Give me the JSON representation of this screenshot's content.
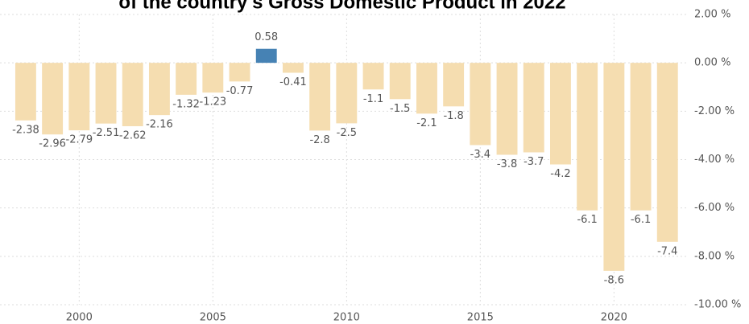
{
  "chart_data": {
    "type": "bar",
    "title": "of the country's Gross Domestic Product in 2022",
    "x": [
      1998,
      1999,
      2000,
      2001,
      2002,
      2003,
      2004,
      2005,
      2006,
      2007,
      2008,
      2009,
      2010,
      2011,
      2012,
      2013,
      2014,
      2015,
      2016,
      2017,
      2018,
      2019,
      2020,
      2021,
      2022
    ],
    "values": [
      -2.38,
      -2.96,
      -2.79,
      -2.51,
      -2.62,
      -2.16,
      -1.32,
      -1.23,
      -0.77,
      0.58,
      -0.41,
      -2.8,
      -2.5,
      -1.1,
      -1.5,
      -2.1,
      -1.8,
      -3.4,
      -3.8,
      -3.7,
      -4.2,
      -6.1,
      -8.6,
      -6.1,
      -7.4
    ],
    "color": "#f5ddb0",
    "positive_color": "#4682b4",
    "xlim": [
      1997.4,
      2022.7
    ],
    "xticks": [
      2000,
      2005,
      2010,
      2015,
      2020
    ],
    "ylim": [
      -10,
      2
    ],
    "yticks": [
      {
        "value": 2,
        "label": "2.00 %"
      },
      {
        "value": 0,
        "label": "0.00 %"
      },
      {
        "value": -2,
        "label": "-2.00 %"
      },
      {
        "value": -4,
        "label": "-4.00 %"
      },
      {
        "value": -6,
        "label": "-6.00 %"
      },
      {
        "value": -8,
        "label": "-8.00 %"
      },
      {
        "value": -10,
        "label": "-10.00 %"
      }
    ],
    "grid": true
  }
}
